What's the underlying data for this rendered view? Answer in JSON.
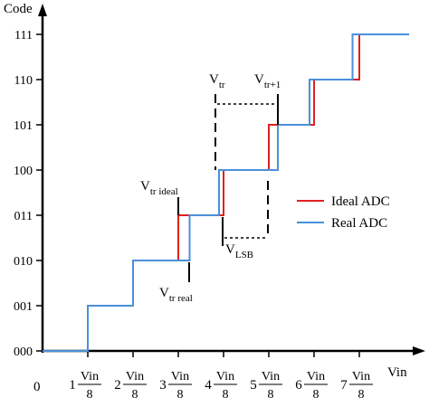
{
  "chart_data": {
    "type": "line",
    "step": true,
    "ylabel": "Code",
    "xlabel": "Vin",
    "origin_label": "0",
    "x_ticks": [
      {
        "coef": "1",
        "num": "Vin",
        "den": "8"
      },
      {
        "coef": "2",
        "num": "Vin",
        "den": "8"
      },
      {
        "coef": "3",
        "num": "Vin",
        "den": "8"
      },
      {
        "coef": "4",
        "num": "Vin",
        "den": "8"
      },
      {
        "coef": "5",
        "num": "Vin",
        "den": "8"
      },
      {
        "coef": "6",
        "num": "Vin",
        "den": "8"
      },
      {
        "coef": "7",
        "num": "Vin",
        "den": "8"
      }
    ],
    "x_end_label": "Vin",
    "y_ticks": [
      "000",
      "001",
      "010",
      "011",
      "100",
      "101",
      "110",
      "111"
    ],
    "xlim": [
      0,
      8
    ],
    "ylim": [
      0,
      7
    ],
    "series": [
      {
        "name": "Ideal ADC",
        "color": "#e02020",
        "transitions": [
          1,
          2,
          3,
          4,
          5,
          6,
          7
        ],
        "x_end": 8.1
      },
      {
        "name": "Real ADC",
        "color": "#4a90d9",
        "transitions": [
          1,
          2,
          3.25,
          3.9,
          5.2,
          5.9,
          6.85
        ],
        "x_end": 8.1
      }
    ],
    "legend_position": "right",
    "annotations": {
      "vtr": {
        "main": "V",
        "sub": "tr"
      },
      "vtr1": {
        "main": "V",
        "sub": "tr+1"
      },
      "vtr_ideal": {
        "main": "V",
        "sub": "tr ideal"
      },
      "vtr_real": {
        "main": "V",
        "sub": "tr real"
      },
      "vlsb": {
        "main": "V",
        "sub": "LSB"
      }
    }
  }
}
